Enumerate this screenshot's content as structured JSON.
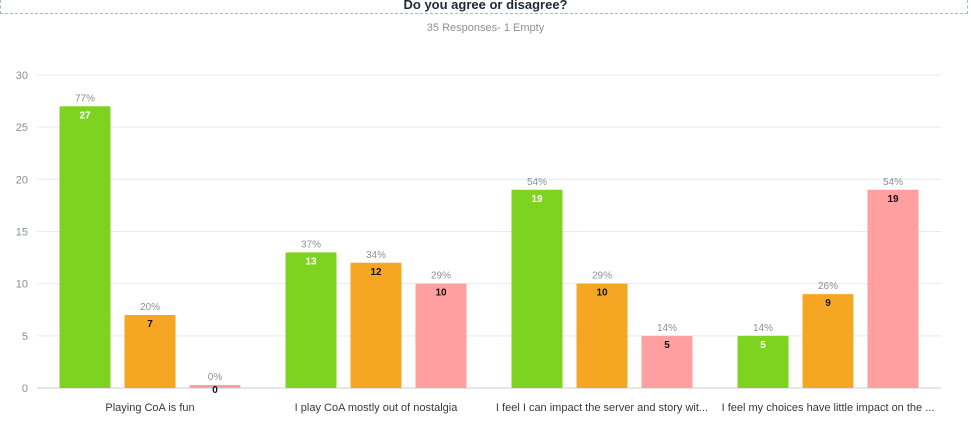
{
  "title": "Do you agree or disagree?",
  "subtitle": "35 Responses- 1 Empty",
  "colors": {
    "green": "#7ed321",
    "orange": "#f5a623",
    "pink": "#ff9f9f",
    "grid": "#e6e9ee",
    "axis": "#c9cdd4"
  },
  "chart_data": {
    "type": "bar",
    "title": "Do you agree or disagree?",
    "subtitle": "35 Responses- 1 Empty",
    "categories": [
      "Playing CoA is fun",
      "I play CoA mostly out of nostalgia",
      "I feel I can impact the server and story wit...",
      "I feel my choices have little impact on the ..."
    ],
    "series": [
      {
        "color": "#7ed321",
        "values": [
          27,
          13,
          19,
          5
        ],
        "percents": [
          "77%",
          "37%",
          "54%",
          "14%"
        ]
      },
      {
        "color": "#f5a623",
        "values": [
          7,
          12,
          10,
          9
        ],
        "percents": [
          "20%",
          "34%",
          "29%",
          "26%"
        ]
      },
      {
        "color": "#ff9f9f",
        "values": [
          0,
          10,
          5,
          19
        ],
        "percents": [
          "0%",
          "29%",
          "14%",
          "54%"
        ]
      }
    ],
    "ylim": [
      0,
      30
    ],
    "yticks": [
      0,
      5,
      10,
      15,
      20,
      25,
      30
    ],
    "grid": true
  }
}
